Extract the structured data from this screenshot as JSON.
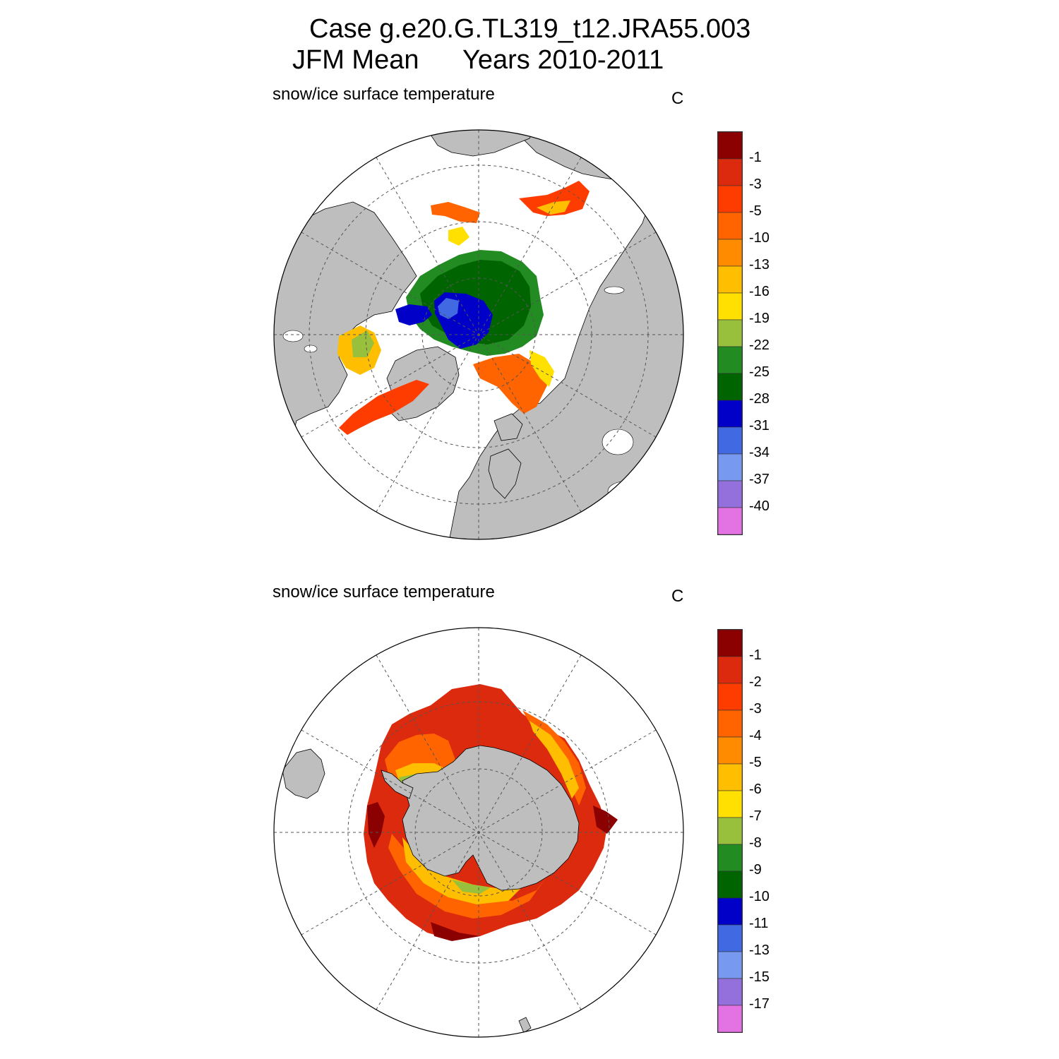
{
  "title": {
    "case": "Case g.e20.G.TL319_t12.JRA55.003",
    "period": "JFM Mean",
    "years": "Years 2010-2011"
  },
  "colors": {
    "land": "#bebebe",
    "ocean": "#ffffff",
    "grid": "#555555"
  },
  "panels": [
    {
      "label": "snow/ice surface temperature",
      "units": "C",
      "hemisphere": "north",
      "colorbar": {
        "colors": [
          "#8b0000",
          "#dc2a0e",
          "#ff3c00",
          "#ff6400",
          "#ff8c00",
          "#ffbf00",
          "#ffe000",
          "#99c03c",
          "#228b22",
          "#006400",
          "#0000c8",
          "#4169e1",
          "#7899f0",
          "#9370db",
          "#e373e3"
        ],
        "ticks": [
          "-1",
          "-3",
          "-5",
          "-10",
          "-13",
          "-16",
          "-19",
          "-22",
          "-25",
          "-28",
          "-31",
          "-34",
          "-37",
          "-40"
        ]
      }
    },
    {
      "label": "snow/ice surface temperature",
      "units": "C",
      "hemisphere": "south",
      "colorbar": {
        "colors": [
          "#8b0000",
          "#dc2a0e",
          "#ff3c00",
          "#ff6400",
          "#ff8c00",
          "#ffbf00",
          "#ffe000",
          "#99c03c",
          "#228b22",
          "#006400",
          "#0000c8",
          "#4169e1",
          "#7899f0",
          "#9370db",
          "#e373e3"
        ],
        "ticks": [
          "-1",
          "-2",
          "-3",
          "-4",
          "-5",
          "-6",
          "-7",
          "-8",
          "-9",
          "-10",
          "-11",
          "-13",
          "-15",
          "-17"
        ]
      }
    }
  ]
}
